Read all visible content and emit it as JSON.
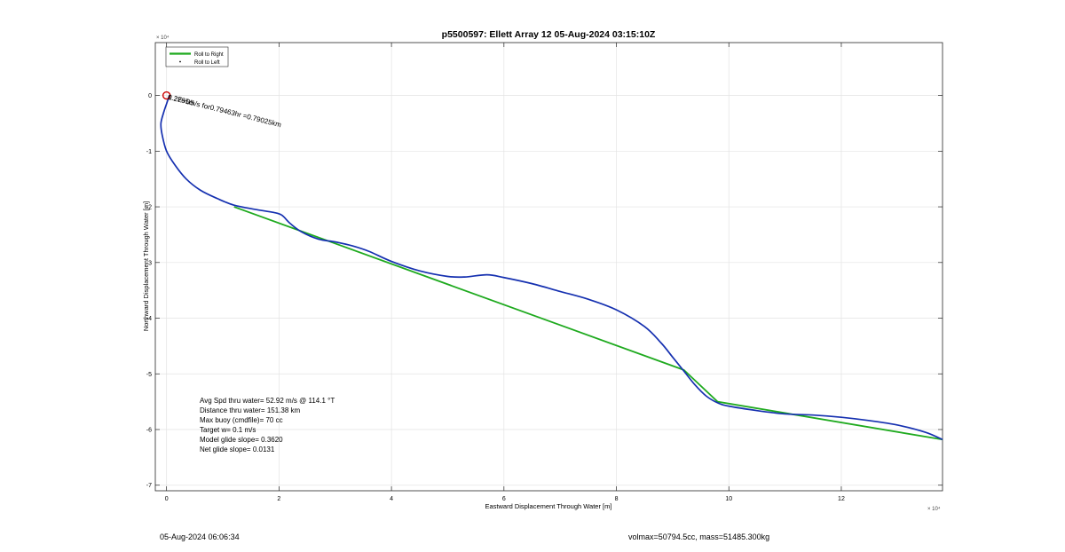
{
  "chart_data": {
    "type": "line",
    "title": "p5500597: Ellett Array 12 05-Aug-2024 03:15:10Z",
    "xlabel": "Eastward Displacement Through Water [m]",
    "ylabel": "Northward Displacement Through Water [m]",
    "x_exponent_label": "× 10⁴",
    "y_exponent_label": "× 10⁴",
    "xlim": [
      -0.2,
      13.8
    ],
    "ylim": [
      -7.1,
      0.95
    ],
    "xticks": [
      0,
      2,
      4,
      6,
      8,
      10,
      12
    ],
    "xtick_labels": [
      "0",
      "2",
      "4",
      "6",
      "8",
      "10",
      "12"
    ],
    "yticks": [
      -7,
      -6,
      -5,
      -4,
      -3,
      -2,
      -1,
      0
    ],
    "ytick_labels": [
      "-7",
      "-6",
      "-5",
      "-4",
      "-3",
      "-2",
      "-1",
      "0"
    ],
    "grid": true,
    "legend_position": "top-left",
    "series": [
      {
        "name": "Roll to Right",
        "color": "#1faa1f",
        "style": "line",
        "x": [
          1.2,
          9.2,
          9.8,
          13.8
        ],
        "y": [
          -2.0,
          -4.93,
          -5.5,
          -6.18
        ]
      },
      {
        "name": "Roll to Left",
        "color": "#000000",
        "style": "marker",
        "x": [],
        "y": []
      },
      {
        "name": "",
        "color": "#1530b0",
        "style": "line",
        "x": [
          0.05,
          0.0,
          -0.05,
          -0.1,
          -0.08,
          0.0,
          0.15,
          0.35,
          0.6,
          0.9,
          1.2,
          1.6,
          1.9,
          2.05,
          2.2,
          2.4,
          2.7,
          3.0,
          3.3,
          3.6,
          4.0,
          4.5,
          5.0,
          5.3,
          5.7,
          6.0,
          6.5,
          7.0,
          7.5,
          8.0,
          8.5,
          8.8,
          9.0,
          9.2,
          9.4,
          9.6,
          9.8,
          10.0,
          10.5,
          11.0,
          11.5,
          12.0,
          12.5,
          13.0,
          13.5,
          13.8
        ],
        "y": [
          0.0,
          -0.15,
          -0.3,
          -0.5,
          -0.7,
          -1.0,
          -1.25,
          -1.5,
          -1.7,
          -1.85,
          -1.97,
          -2.05,
          -2.1,
          -2.15,
          -2.3,
          -2.45,
          -2.58,
          -2.63,
          -2.7,
          -2.8,
          -2.98,
          -3.15,
          -3.25,
          -3.26,
          -3.22,
          -3.27,
          -3.38,
          -3.52,
          -3.66,
          -3.85,
          -4.15,
          -4.45,
          -4.7,
          -4.95,
          -5.2,
          -5.4,
          -5.52,
          -5.58,
          -5.66,
          -5.72,
          -5.74,
          -5.78,
          -5.84,
          -5.92,
          -6.05,
          -6.18
        ]
      }
    ],
    "start_marker": {
      "x": 0.0,
      "y": 0.0,
      "color": "#cc0000"
    },
    "annotation": {
      "text": "0.2765m/s for0.79463hr =0.79025km",
      "x": 0.0,
      "y": 0.0,
      "rotation_deg": 14,
      "overlap_label": "1.2E+05"
    },
    "stats": [
      "Avg Spd thru water= 52.92 m/s @ 114.1 °T",
      "Distance thru water= 151.38 km",
      "Max buoy (cmdfile)= 70 cc",
      "Target w= 0.1 m/s",
      "Model glide slope= 0.3620",
      "Net glide slope= 0.0131"
    ]
  },
  "footer": {
    "timestamp": "05-Aug-2024 06:06:34",
    "vol_mass": "volmax=50794.5cc, mass=51485.300kg"
  }
}
